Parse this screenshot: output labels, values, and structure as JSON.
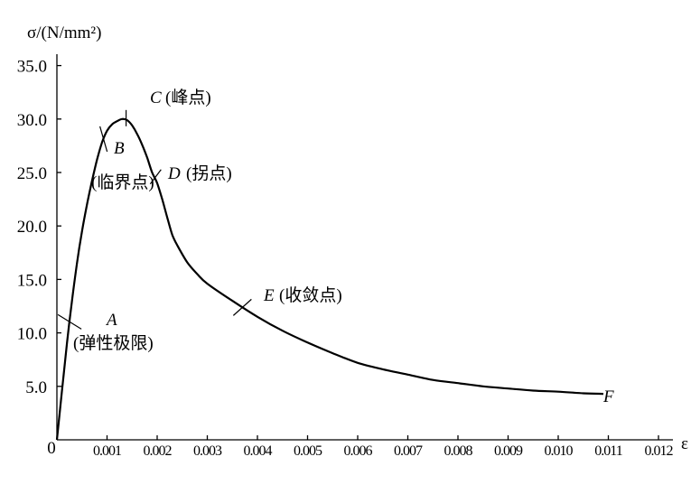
{
  "chart_data": {
    "type": "line",
    "ylabel": "σ/(N/mm²)",
    "xlabel": "ε",
    "ylim": [
      0,
      35
    ],
    "xlim": [
      0,
      0.0122
    ],
    "y_ticks": [
      {
        "value": 5,
        "label": "5.0"
      },
      {
        "value": 10,
        "label": "10.0"
      },
      {
        "value": 15,
        "label": "15.0"
      },
      {
        "value": 20,
        "label": "20.0"
      },
      {
        "value": 25,
        "label": "25.0"
      },
      {
        "value": 30,
        "label": "30.0"
      },
      {
        "value": 35,
        "label": "35.0"
      }
    ],
    "x_ticks": [
      {
        "value": 0,
        "label": "0"
      },
      {
        "value": 0.001,
        "label": "0.001"
      },
      {
        "value": 0.002,
        "label": "0.002"
      },
      {
        "value": 0.003,
        "label": "0.003"
      },
      {
        "value": 0.004,
        "label": "0.004"
      },
      {
        "value": 0.005,
        "label": "0.005"
      },
      {
        "value": 0.006,
        "label": "0.006"
      },
      {
        "value": 0.007,
        "label": "0.007"
      },
      {
        "value": 0.008,
        "label": "0.008"
      },
      {
        "value": 0.009,
        "label": "0.009"
      },
      {
        "value": 0.01,
        "label": "0.010"
      },
      {
        "value": 0.011,
        "label": "0.011"
      },
      {
        "value": 0.012,
        "label": "0.012"
      }
    ],
    "grid": false,
    "series": [
      {
        "x": [
          0,
          0.0001,
          0.0002,
          0.0003,
          0.0004,
          0.0005,
          0.0006,
          0.0007,
          0.0008,
          0.0009,
          0.001,
          0.0011,
          0.0012,
          0.0013,
          0.0014,
          0.0015,
          0.0016,
          0.0017,
          0.0018,
          0.0019,
          0.002,
          0.0021,
          0.0022,
          0.0023,
          0.0024,
          0.0026,
          0.0028,
          0.003,
          0.0035,
          0.004,
          0.0045,
          0.005,
          0.0055,
          0.006,
          0.0065,
          0.007,
          0.0075,
          0.008,
          0.0085,
          0.009,
          0.0095,
          0.01,
          0.0105,
          0.0109
        ],
        "y": [
          0,
          4.5,
          9.0,
          13.0,
          16.5,
          19.5,
          22.0,
          24.2,
          26.2,
          27.8,
          28.9,
          29.5,
          29.8,
          30.0,
          29.9,
          29.4,
          28.6,
          27.6,
          26.4,
          25.0,
          24.0,
          22.5,
          20.8,
          19.2,
          18.2,
          16.6,
          15.5,
          14.6,
          13.0,
          11.5,
          10.2,
          9.1,
          8.1,
          7.2,
          6.6,
          6.1,
          5.6,
          5.3,
          5.0,
          4.8,
          4.6,
          4.5,
          4.35,
          4.3
        ]
      }
    ],
    "annotations": [
      {
        "id": "A",
        "letter": "A",
        "text": "(弹性极限)",
        "x": 0.0002,
        "y": 11.2
      },
      {
        "id": "B",
        "letter": "B",
        "text": "(临界点)",
        "x": 0.00093,
        "y": 28.3
      },
      {
        "id": "C",
        "letter": "C",
        "text": "(峰点)",
        "x": 0.00138,
        "y": 30.0
      },
      {
        "id": "D",
        "letter": "D",
        "text": "(拐点)",
        "x": 0.00197,
        "y": 24.6
      },
      {
        "id": "E",
        "letter": "E",
        "text": "(收敛点)",
        "x": 0.0037,
        "y": 12.3
      },
      {
        "id": "F",
        "letter": "F",
        "text": "",
        "x": 0.0109,
        "y": 4.3
      }
    ]
  }
}
